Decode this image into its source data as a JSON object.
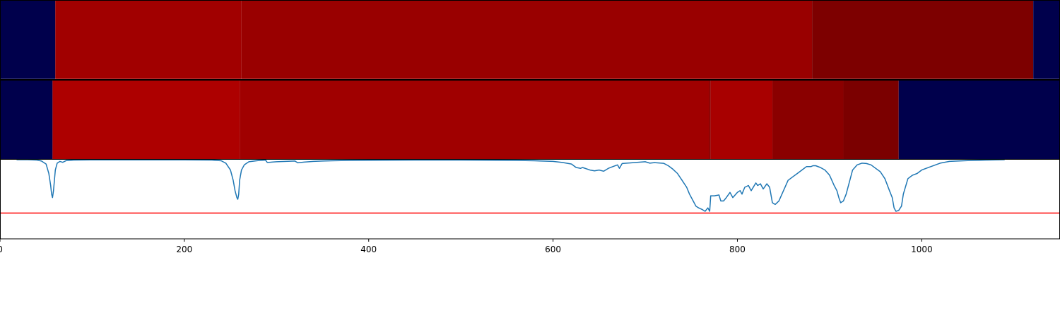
{
  "chart_data": [
    {
      "type": "heatmap",
      "xlim": [
        0,
        1150
      ],
      "segments": [
        {
          "start": 0,
          "end": 60,
          "color": "#00004c"
        },
        {
          "start": 60,
          "end": 262,
          "color": "#a10000"
        },
        {
          "start": 262,
          "end": 881,
          "color": "#990000"
        },
        {
          "start": 881,
          "end": 1121,
          "color": "#7d0000"
        },
        {
          "start": 1121,
          "end": 1150,
          "color": "#00004c"
        }
      ]
    },
    {
      "type": "heatmap",
      "xlim": [
        0,
        1150
      ],
      "segments": [
        {
          "start": 0,
          "end": 57,
          "color": "#00004c"
        },
        {
          "start": 57,
          "end": 260,
          "color": "#ad0000"
        },
        {
          "start": 260,
          "end": 769,
          "color": "#a00000"
        },
        {
          "start": 769,
          "end": 771,
          "color": "#8c0000"
        },
        {
          "start": 771,
          "end": 838,
          "color": "#a80000"
        },
        {
          "start": 838,
          "end": 915,
          "color": "#8a0000"
        },
        {
          "start": 915,
          "end": 975,
          "color": "#7b0000"
        },
        {
          "start": 975,
          "end": 1150,
          "color": "#00004c"
        }
      ]
    },
    {
      "type": "line",
      "xlim": [
        0,
        1150
      ],
      "ylim": [
        -0.46,
        0.0
      ],
      "grid": false,
      "xticks": [
        0,
        200,
        400,
        600,
        800,
        1000
      ],
      "xtick_labels": [
        "0",
        "200",
        "400",
        "600",
        "800",
        "1000"
      ],
      "threshold": {
        "value": -0.31,
        "color": "#ff0000"
      },
      "series": [
        {
          "color": "#1f77b4",
          "x": [
            18,
            30,
            40,
            45,
            50,
            53,
            55,
            56,
            57,
            58,
            60,
            62,
            65,
            68,
            72,
            80,
            100,
            150,
            200,
            230,
            240,
            245,
            250,
            253,
            255,
            257,
            258,
            259,
            260,
            262,
            265,
            270,
            280,
            288,
            290,
            295,
            300,
            320,
            323,
            330,
            340,
            350,
            360,
            380,
            400,
            450,
            500,
            540,
            560,
            580,
            600,
            610,
            620,
            625,
            630,
            632,
            640,
            645,
            650,
            655,
            660,
            665,
            670,
            672,
            675,
            680,
            690,
            700,
            705,
            710,
            720,
            725,
            730,
            735,
            740,
            745,
            748,
            752,
            755,
            758,
            762,
            765,
            768,
            770,
            771,
            775,
            780,
            782,
            785,
            788,
            792,
            795,
            800,
            803,
            805,
            808,
            812,
            815,
            820,
            822,
            825,
            828,
            832,
            835,
            838,
            841,
            845,
            850,
            855,
            860,
            865,
            870,
            875,
            880,
            882,
            885,
            890,
            895,
            900,
            905,
            908,
            910,
            912,
            915,
            918,
            922,
            925,
            930,
            935,
            940,
            945,
            950,
            955,
            960,
            965,
            968,
            970,
            972,
            975,
            978,
            980,
            985,
            990,
            995,
            1000,
            1010,
            1020,
            1030,
            1050,
            1070,
            1090
          ],
          "y": [
            0,
            0,
            -0.002,
            -0.008,
            -0.025,
            -0.08,
            -0.15,
            -0.2,
            -0.22,
            -0.18,
            -0.06,
            -0.02,
            -0.01,
            -0.015,
            -0.005,
            -0.002,
            -0.001,
            -0.001,
            -0.001,
            -0.002,
            -0.006,
            -0.02,
            -0.06,
            -0.12,
            -0.18,
            -0.22,
            -0.23,
            -0.2,
            -0.12,
            -0.06,
            -0.03,
            -0.012,
            -0.005,
            -0.002,
            -0.016,
            -0.014,
            -0.012,
            -0.008,
            -0.018,
            -0.014,
            -0.01,
            -0.008,
            -0.006,
            -0.004,
            -0.003,
            -0.002,
            -0.002,
            -0.003,
            -0.004,
            -0.006,
            -0.01,
            -0.016,
            -0.025,
            -0.045,
            -0.05,
            -0.045,
            -0.06,
            -0.065,
            -0.06,
            -0.067,
            -0.05,
            -0.04,
            -0.03,
            -0.05,
            -0.022,
            -0.02,
            -0.016,
            -0.012,
            -0.02,
            -0.017,
            -0.021,
            -0.035,
            -0.055,
            -0.08,
            -0.12,
            -0.16,
            -0.2,
            -0.24,
            -0.27,
            -0.28,
            -0.29,
            -0.3,
            -0.28,
            -0.3,
            -0.21,
            -0.21,
            -0.205,
            -0.24,
            -0.24,
            -0.22,
            -0.19,
            -0.22,
            -0.19,
            -0.18,
            -0.2,
            -0.16,
            -0.15,
            -0.18,
            -0.135,
            -0.15,
            -0.14,
            -0.17,
            -0.14,
            -0.16,
            -0.25,
            -0.26,
            -0.24,
            -0.18,
            -0.12,
            -0.1,
            -0.08,
            -0.06,
            -0.04,
            -0.04,
            -0.035,
            -0.035,
            -0.045,
            -0.06,
            -0.09,
            -0.15,
            -0.18,
            -0.22,
            -0.25,
            -0.24,
            -0.2,
            -0.12,
            -0.06,
            -0.03,
            -0.02,
            -0.022,
            -0.03,
            -0.05,
            -0.07,
            -0.11,
            -0.18,
            -0.22,
            -0.28,
            -0.3,
            -0.295,
            -0.27,
            -0.2,
            -0.11,
            -0.09,
            -0.08,
            -0.06,
            -0.04,
            -0.02,
            -0.01,
            -0.005,
            -0.002,
            0
          ]
        }
      ]
    }
  ]
}
